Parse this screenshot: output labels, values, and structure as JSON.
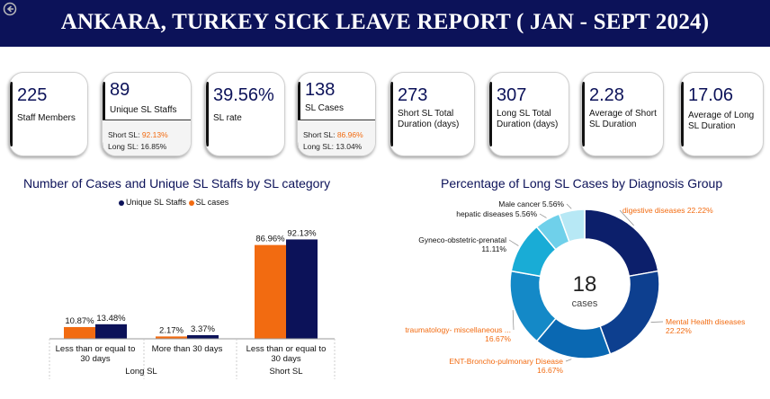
{
  "header": {
    "title": "ANKARA, TURKEY SICK LEAVE REPORT ( JAN - SEPT 2024)"
  },
  "colors": {
    "navy": "#0c1259",
    "orange": "#f26b11"
  },
  "kpis": [
    {
      "value": "225",
      "label": "Staff Members"
    },
    {
      "value": "89",
      "label": "Unique SL Staffs",
      "short_label": "Short SL:",
      "short_pct": "92.13%",
      "long_label": "Long SL:",
      "long_pct": "16.85%"
    },
    {
      "value": "39.56%",
      "label": "SL rate"
    },
    {
      "value": "138",
      "label": "SL Cases",
      "short_label": "Short SL:",
      "short_pct": "86.96%",
      "long_label": "Long SL:",
      "long_pct": "13.04%"
    },
    {
      "value": "273",
      "label": "Short SL Total Duration (days)"
    },
    {
      "value": "307",
      "label": "Long SL Total Duration (days)"
    },
    {
      "value": "2.28",
      "label": "Average of Short SL Duration"
    },
    {
      "value": "17.06",
      "label": "Average of Long SL Duration"
    }
  ],
  "chart_data": [
    {
      "type": "bar",
      "title": "Number of Cases and Unique SL Staffs by SL category",
      "categories": [
        "Less than or equal to 30 days",
        "More than 30 days",
        "Less than or equal to 30 days"
      ],
      "groups": [
        {
          "label": "Long SL",
          "categories": [
            0,
            1
          ]
        },
        {
          "label": "Short SL",
          "categories": [
            2
          ]
        }
      ],
      "series": [
        {
          "name": "SL cases",
          "color": "#f26b11",
          "values": [
            10.87,
            2.17,
            86.96
          ]
        },
        {
          "name": "Unique SL Staffs",
          "color": "#0c1259",
          "values": [
            13.48,
            3.37,
            92.13
          ]
        }
      ],
      "legend": [
        "Unique SL Staffs",
        "SL cases"
      ],
      "ylim": [
        0,
        100
      ],
      "grid": false,
      "legend_position": "top"
    },
    {
      "type": "pie",
      "title": "Percentage of Long SL Cases by Diagnosis Group",
      "center_value": "18",
      "center_label": "cases",
      "slices": [
        {
          "label": "digestive diseases",
          "value": 22.22,
          "color": "#0c1f6b",
          "text_color": "#f26b11"
        },
        {
          "label": "Mental Health diseases",
          "value": 22.22,
          "color": "#0d3f8f",
          "text_color": "#f26b11"
        },
        {
          "label": "ENT-Broncho-pulmonary Disease",
          "value": 16.67,
          "color": "#0a68b2",
          "text_color": "#f26b11"
        },
        {
          "label": "traumatology- miscellaneous ...",
          "value": 16.67,
          "color": "#1489c7",
          "text_color": "#f26b11"
        },
        {
          "label": "Gyneco-obstetric-prenatal",
          "value": 11.11,
          "color": "#19acd6",
          "text_color": "#111"
        },
        {
          "label": "hepatic diseases",
          "value": 5.56,
          "color": "#6fd0ea",
          "text_color": "#111"
        },
        {
          "label": "Male cancer",
          "value": 5.56,
          "color": "#b7e8f5",
          "text_color": "#111"
        }
      ]
    }
  ]
}
